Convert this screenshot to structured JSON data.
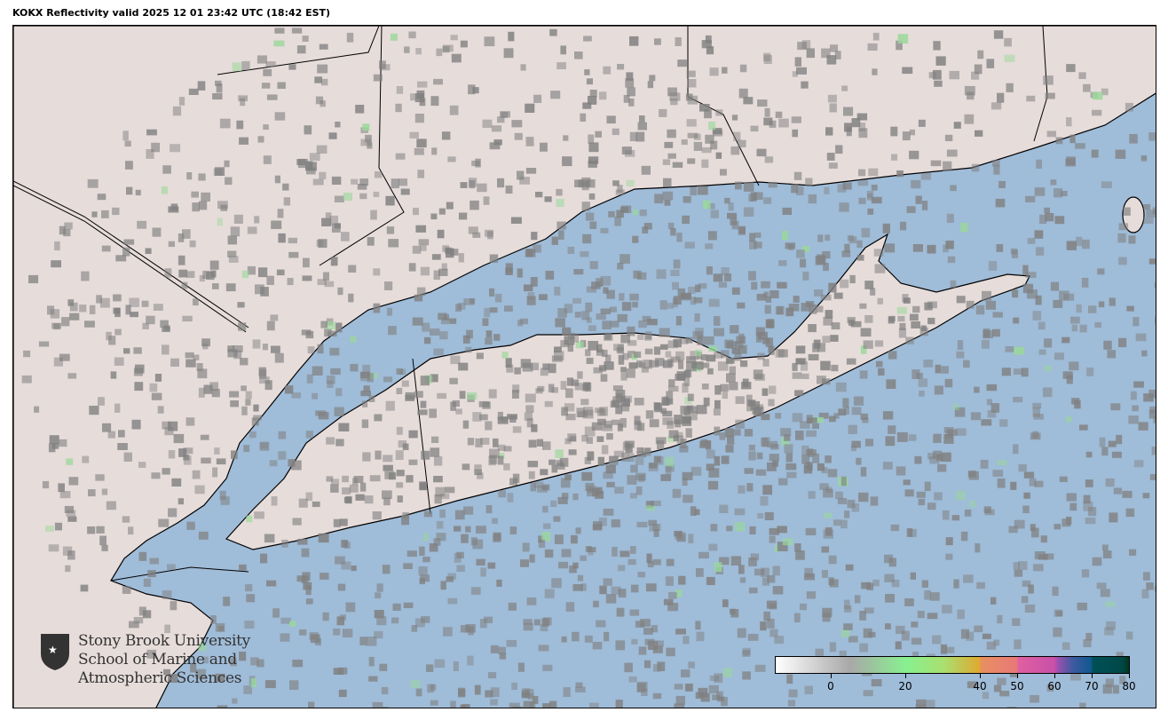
{
  "title": "KOKX Reflectivity valid 2025 12 01 23:42 UTC (18:42 EST)",
  "map": {
    "land_color": "#e6dcda",
    "water_color": "#9fbcd8",
    "echo_color": "#808080"
  },
  "logo": {
    "line1": "Stony Brook University",
    "line2": "School of Marine and",
    "line3": "Atmospheric Sciences"
  },
  "colorbar": {
    "min": -15,
    "max": 80,
    "ticks": [
      "0",
      "20",
      "40",
      "50",
      "60",
      "70",
      "80"
    ],
    "tick_values": [
      0,
      20,
      40,
      50,
      60,
      70,
      80
    ],
    "stops": [
      {
        "value": -15,
        "color": "#ffffff"
      },
      {
        "value": 5,
        "color": "#a8a8a8"
      },
      {
        "value": 20,
        "color": "#88f090"
      },
      {
        "value": 30,
        "color": "#a8e070"
      },
      {
        "value": 40,
        "color": "#e0a830"
      },
      {
        "value": 40.1,
        "color": "#e89060"
      },
      {
        "value": 50,
        "color": "#e87878"
      },
      {
        "value": 50.1,
        "color": "#e060a0"
      },
      {
        "value": 60,
        "color": "#c850a8"
      },
      {
        "value": 61,
        "color": "#9850b0"
      },
      {
        "value": 65,
        "color": "#3c5aa0"
      },
      {
        "value": 70,
        "color": "#105890"
      },
      {
        "value": 70.1,
        "color": "#005058"
      },
      {
        "value": 78,
        "color": "#004848"
      },
      {
        "value": 80,
        "color": "#003820"
      }
    ]
  }
}
